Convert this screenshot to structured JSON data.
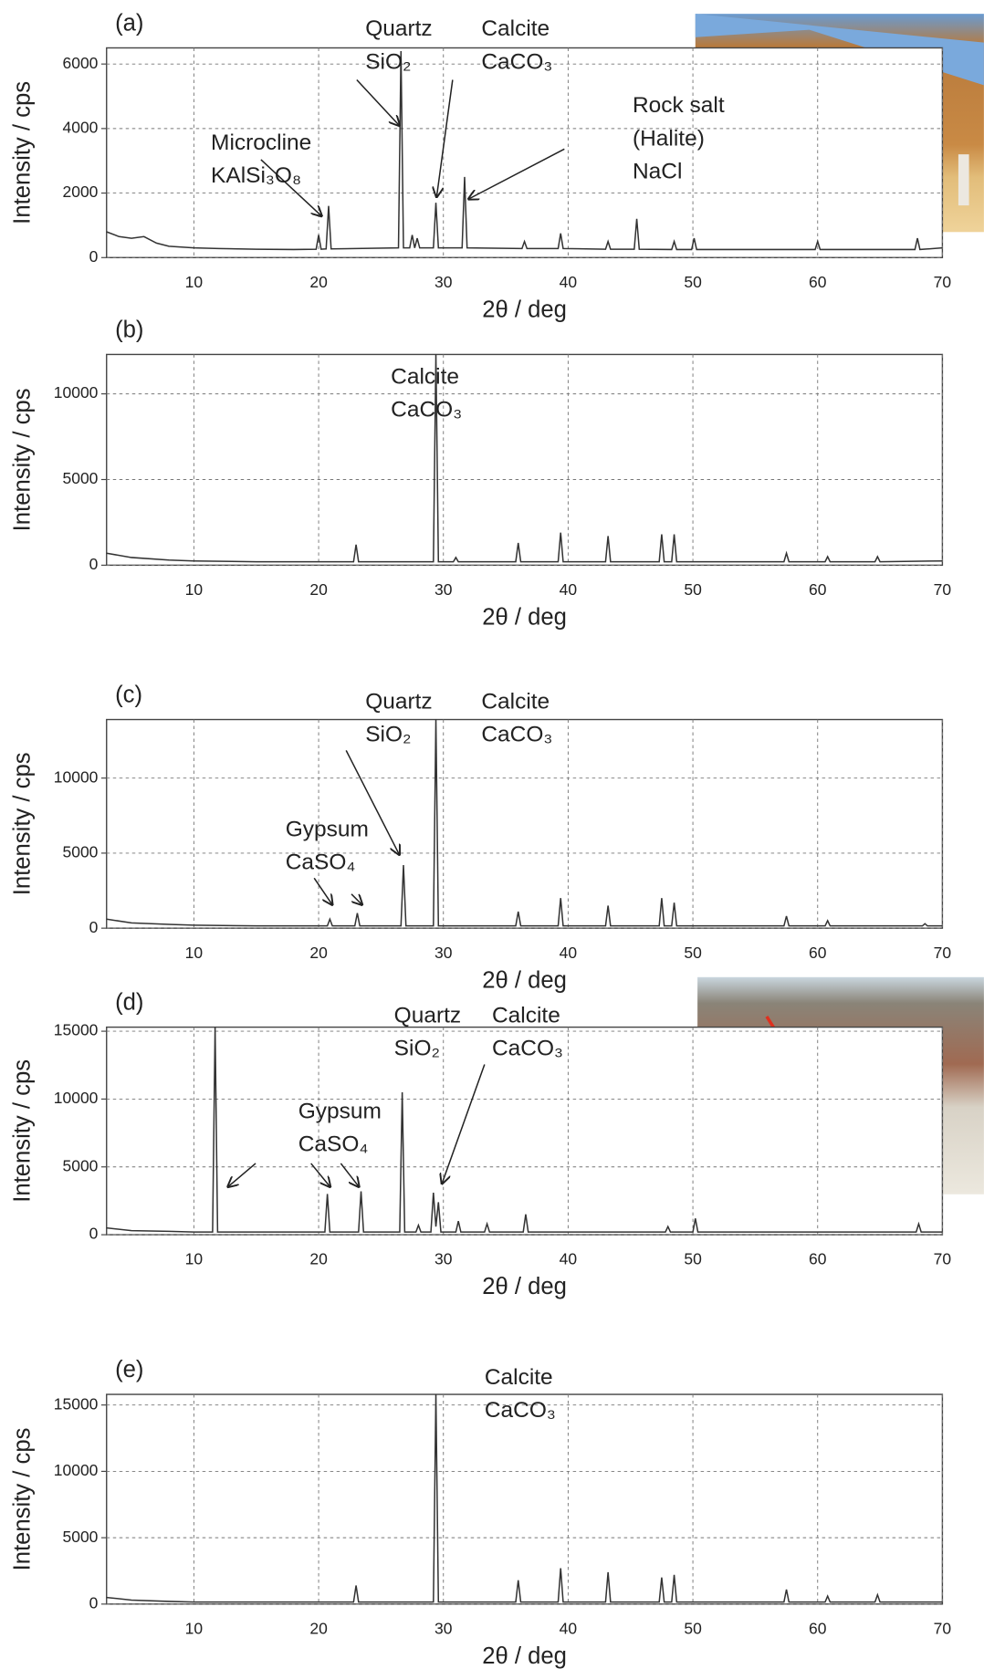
{
  "chart_data": [
    {
      "type": "line",
      "panel": "(a)",
      "xlabel": "2θ / deg",
      "ylabel": "Intensity / cps",
      "color": "#333333",
      "grid": true,
      "xlim": [
        3,
        70
      ],
      "ylim": [
        0,
        6500
      ],
      "xticks": [
        10,
        20,
        30,
        40,
        50,
        60,
        70
      ],
      "yticks": [
        0,
        2000,
        4000,
        6000
      ],
      "x": [
        3,
        4,
        5,
        6,
        7,
        8,
        10,
        12,
        15,
        18,
        19.8,
        20,
        20.2,
        20.6,
        20.8,
        21,
        26.4,
        26.6,
        26.8,
        27.3,
        27.5,
        27.7,
        27.9,
        28.1,
        29.2,
        29.4,
        29.6,
        31.5,
        31.7,
        31.9,
        36.3,
        36.5,
        36.7,
        39.2,
        39.4,
        39.6,
        43,
        43.2,
        43.4,
        45.3,
        45.5,
        45.7,
        48.3,
        48.5,
        48.7,
        49.9,
        50.1,
        50.3,
        59.8,
        60,
        60.2,
        67.8,
        68,
        68.2,
        70
      ],
      "values": [
        800,
        650,
        600,
        650,
        450,
        350,
        300,
        280,
        260,
        250,
        260,
        700,
        260,
        270,
        1600,
        270,
        300,
        6400,
        300,
        300,
        700,
        300,
        600,
        300,
        300,
        1700,
        300,
        300,
        2500,
        300,
        280,
        500,
        280,
        280,
        750,
        280,
        260,
        500,
        260,
        260,
        1200,
        260,
        250,
        500,
        250,
        250,
        600,
        250,
        250,
        500,
        250,
        250,
        600,
        250,
        300
      ],
      "annotations": [
        {
          "lines": [
            "Quartz",
            "SiO₂"
          ]
        },
        {
          "lines": [
            "Calcite",
            "CaCO₃"
          ]
        },
        {
          "lines": [
            "Rock salt",
            "(Halite)",
            "NaCl"
          ]
        },
        {
          "lines": [
            "Microcline",
            "KAlSi₃O₈"
          ]
        }
      ]
    },
    {
      "type": "line",
      "panel": "(b)",
      "xlabel": "2θ / deg",
      "ylabel": "Intensity / cps",
      "color": "#333333",
      "grid": true,
      "xlim": [
        3,
        70
      ],
      "ylim": [
        0,
        12300
      ],
      "xticks": [
        10,
        20,
        30,
        40,
        50,
        60,
        70
      ],
      "yticks": [
        0,
        5000,
        10000
      ],
      "x": [
        3,
        5,
        8,
        10,
        15,
        20,
        22.8,
        23,
        23.2,
        29.2,
        29.4,
        29.6,
        30.8,
        31,
        31.2,
        35.8,
        36,
        36.2,
        39.2,
        39.4,
        39.6,
        43,
        43.2,
        43.4,
        47.3,
        47.5,
        47.7,
        48.3,
        48.5,
        48.7,
        57.3,
        57.5,
        57.7,
        60.6,
        60.8,
        61,
        64.6,
        64.8,
        65,
        70
      ],
      "values": [
        700,
        450,
        300,
        250,
        200,
        200,
        200,
        1200,
        200,
        200,
        12300,
        200,
        200,
        450,
        200,
        200,
        1300,
        200,
        200,
        1900,
        200,
        200,
        1700,
        200,
        200,
        1800,
        200,
        200,
        1800,
        200,
        200,
        700,
        200,
        200,
        500,
        200,
        200,
        500,
        200,
        250
      ],
      "annotations": [
        {
          "lines": [
            "Calcite",
            "CaCO₃"
          ]
        }
      ]
    },
    {
      "type": "line",
      "panel": "(c)",
      "xlabel": "2θ / deg",
      "ylabel": "Intensity / cps",
      "color": "#333333",
      "grid": true,
      "xlim": [
        3,
        70
      ],
      "ylim": [
        0,
        13900
      ],
      "xticks": [
        10,
        20,
        30,
        40,
        50,
        60,
        70
      ],
      "yticks": [
        0,
        5000,
        10000
      ],
      "x": [
        3,
        5,
        8,
        10,
        15,
        20,
        20.7,
        20.9,
        21.1,
        22.9,
        23.1,
        23.3,
        26.6,
        26.8,
        27,
        29.2,
        29.4,
        29.6,
        35.8,
        36,
        36.2,
        39.2,
        39.4,
        39.6,
        43,
        43.2,
        43.4,
        47.3,
        47.5,
        47.7,
        48.3,
        48.5,
        48.7,
        57.3,
        57.5,
        57.7,
        60.6,
        60.8,
        61,
        68.4,
        68.6,
        68.8,
        70
      ],
      "values": [
        600,
        350,
        250,
        200,
        150,
        150,
        150,
        600,
        150,
        150,
        1000,
        150,
        150,
        4200,
        150,
        150,
        13900,
        150,
        150,
        1100,
        150,
        150,
        2000,
        150,
        150,
        1500,
        150,
        150,
        2000,
        150,
        150,
        1700,
        150,
        150,
        800,
        150,
        150,
        500,
        150,
        150,
        300,
        150,
        150
      ],
      "annotations": [
        {
          "lines": [
            "Quartz",
            "SiO₂"
          ]
        },
        {
          "lines": [
            "Calcite",
            "CaCO₃"
          ]
        },
        {
          "lines": [
            "Gypsum",
            "CaSO₄"
          ]
        }
      ]
    },
    {
      "type": "line",
      "panel": "(d)",
      "xlabel": "2θ / deg",
      "ylabel": "Intensity / cps",
      "color": "#333333",
      "grid": true,
      "xlim": [
        3,
        70
      ],
      "ylim": [
        0,
        15300
      ],
      "xticks": [
        10,
        20,
        30,
        40,
        50,
        60,
        70
      ],
      "yticks": [
        0,
        5000,
        10000,
        15000
      ],
      "x": [
        3,
        5,
        8,
        10,
        11.5,
        11.7,
        11.9,
        15,
        20,
        20.5,
        20.7,
        20.9,
        23.2,
        23.4,
        23.6,
        26.5,
        26.7,
        26.9,
        27.8,
        28,
        28.2,
        29,
        29.2,
        29.4,
        29.6,
        29.8,
        31,
        31.2,
        31.4,
        33.3,
        33.5,
        33.7,
        36.4,
        36.6,
        36.8,
        47.8,
        48,
        48.2,
        50,
        50.2,
        50.4,
        67.9,
        68.1,
        68.3,
        70
      ],
      "values": [
        500,
        300,
        250,
        200,
        200,
        15300,
        200,
        200,
        200,
        200,
        3000,
        200,
        200,
        3200,
        200,
        200,
        10500,
        200,
        200,
        700,
        200,
        200,
        3100,
        600,
        2400,
        200,
        200,
        1000,
        200,
        200,
        800,
        200,
        200,
        1500,
        200,
        200,
        600,
        200,
        200,
        1200,
        200,
        200,
        800,
        200,
        200
      ],
      "annotations": [
        {
          "lines": [
            "Quartz",
            "SiO₂"
          ]
        },
        {
          "lines": [
            "Calcite",
            "CaCO₃"
          ]
        },
        {
          "lines": [
            "Gypsum",
            "CaSO₄"
          ]
        }
      ]
    },
    {
      "type": "line",
      "panel": "(e)",
      "xlabel": "2θ / deg",
      "ylabel": "Intensity / cps",
      "color": "#333333",
      "grid": true,
      "xlim": [
        3,
        70
      ],
      "ylim": [
        0,
        15800
      ],
      "xticks": [
        10,
        20,
        30,
        40,
        50,
        60,
        70
      ],
      "yticks": [
        0,
        5000,
        10000,
        15000
      ],
      "x": [
        3,
        5,
        8,
        10,
        15,
        20,
        22.8,
        23,
        23.2,
        29.2,
        29.4,
        29.6,
        35.8,
        36,
        36.2,
        39.2,
        39.4,
        39.6,
        43,
        43.2,
        43.4,
        47.3,
        47.5,
        47.7,
        48.3,
        48.5,
        48.7,
        57.3,
        57.5,
        57.7,
        60.6,
        60.8,
        61,
        64.6,
        64.8,
        65,
        70
      ],
      "values": [
        500,
        300,
        200,
        150,
        150,
        150,
        150,
        1400,
        150,
        150,
        15800,
        150,
        150,
        1800,
        150,
        150,
        2700,
        150,
        150,
        2400,
        150,
        150,
        2000,
        150,
        150,
        2200,
        150,
        150,
        1100,
        150,
        150,
        600,
        150,
        150,
        700,
        150,
        150
      ],
      "annotations": [
        {
          "lines": [
            "Calcite",
            "CaCO₃"
          ]
        }
      ]
    }
  ]
}
